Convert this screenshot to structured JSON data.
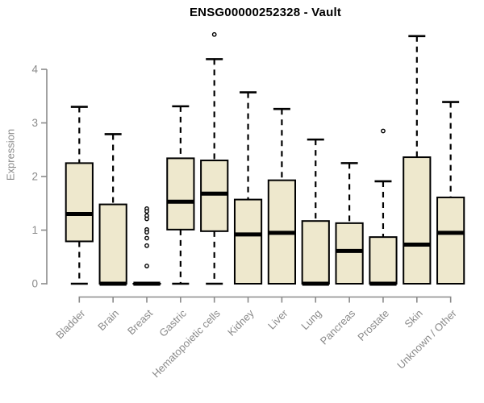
{
  "chart_data": {
    "type": "boxplot",
    "title": "ENSG00000252328 - Vault",
    "ylabel": "Expression",
    "xlabel": "",
    "ylim": [
      0,
      4
    ],
    "yticks": [
      0,
      1,
      2,
      3,
      4
    ],
    "grid": "off",
    "legend": "none",
    "xticklabel_rotation": 45,
    "categories": [
      "Bladder",
      "Brain",
      "Breast",
      "Gastric",
      "Hematopoietic cells",
      "Kidney",
      "Liver",
      "Lung",
      "Pancreas",
      "Prostate",
      "Skin",
      "Unknown / Other"
    ],
    "series": [
      {
        "category": "Bladder",
        "whisker_low": 0,
        "q1": 0.79,
        "median": 1.3,
        "q3": 2.25,
        "whisker_high": 3.3,
        "outliers": []
      },
      {
        "category": "Brain",
        "whisker_low": 0,
        "q1": 0.0,
        "median": 0.0,
        "q3": 1.48,
        "whisker_high": 2.79,
        "outliers": []
      },
      {
        "category": "Breast",
        "whisker_low": 0,
        "q1": 0.0,
        "median": 0.0,
        "q3": 0.0,
        "whisker_high": 0.0,
        "outliers": [
          1.4,
          1.35,
          1.27,
          1.21,
          1.01,
          0.96,
          0.85,
          0.71,
          0.33
        ]
      },
      {
        "category": "Gastric",
        "whisker_low": 0,
        "q1": 1.01,
        "median": 1.53,
        "q3": 2.34,
        "whisker_high": 3.31,
        "outliers": []
      },
      {
        "category": "Hematopoietic cells",
        "whisker_low": 0,
        "q1": 0.98,
        "median": 1.68,
        "q3": 2.3,
        "whisker_high": 4.19,
        "outliers": [
          4.65
        ]
      },
      {
        "category": "Kidney",
        "whisker_low": 0,
        "q1": 0.0,
        "median": 0.92,
        "q3": 1.57,
        "whisker_high": 3.57,
        "outliers": []
      },
      {
        "category": "Liver",
        "whisker_low": 0,
        "q1": 0.0,
        "median": 0.95,
        "q3": 1.93,
        "whisker_high": 3.26,
        "outliers": []
      },
      {
        "category": "Lung",
        "whisker_low": 0,
        "q1": 0.0,
        "median": 0.0,
        "q3": 1.17,
        "whisker_high": 2.69,
        "outliers": []
      },
      {
        "category": "Pancreas",
        "whisker_low": 0,
        "q1": 0.0,
        "median": 0.61,
        "q3": 1.13,
        "whisker_high": 2.25,
        "outliers": []
      },
      {
        "category": "Prostate",
        "whisker_low": 0,
        "q1": 0.0,
        "median": 0.0,
        "q3": 0.87,
        "whisker_high": 1.91,
        "outliers": [
          2.85
        ]
      },
      {
        "category": "Skin",
        "whisker_low": 0,
        "q1": 0.0,
        "median": 0.73,
        "q3": 2.36,
        "whisker_high": 4.62,
        "outliers": []
      },
      {
        "category": "Unknown / Other",
        "whisker_low": 0,
        "q1": 0.0,
        "median": 0.95,
        "q3": 1.61,
        "whisker_high": 3.39,
        "outliers": []
      }
    ],
    "colors": {
      "box_fill": "#EEE8CD",
      "box_border": "#000000",
      "median": "#000000",
      "whisker": "#000000",
      "outlier_stroke": "#000000",
      "axis": "#8a8a8a",
      "tick_label": "#8a8a8a",
      "title": "#000000",
      "background": "#ffffff"
    }
  }
}
